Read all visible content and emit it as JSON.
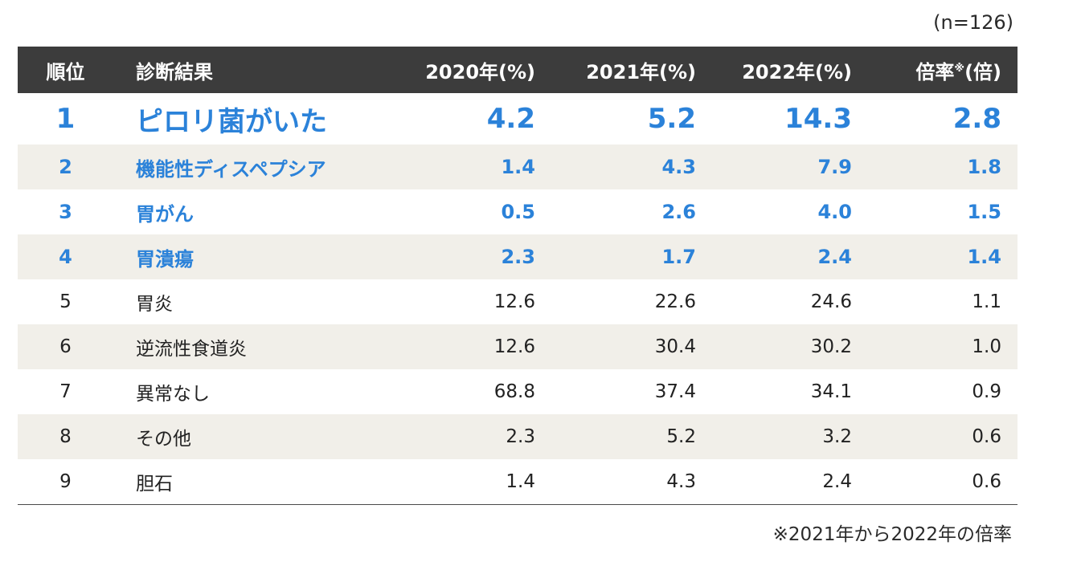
{
  "sample_size": "(n=126)",
  "header": {
    "rank": "順位",
    "diagnosis": "診断結果",
    "y2020": "2020年(%)",
    "y2021": "2021年(%)",
    "y2022": "2022年(%)",
    "ratio": "倍率",
    "ratio_mark": "※",
    "ratio_unit": "(倍)"
  },
  "rows": [
    {
      "rank": "1",
      "name": "ピロリ菌がいた",
      "y2020": "4.2",
      "y2021": "5.2",
      "y2022": "14.3",
      "ratio": "2.8"
    },
    {
      "rank": "2",
      "name": "機能性ディスペプシア",
      "y2020": "1.4",
      "y2021": "4.3",
      "y2022": "7.9",
      "ratio": "1.8"
    },
    {
      "rank": "3",
      "name": "胃がん",
      "y2020": "0.5",
      "y2021": "2.6",
      "y2022": "4.0",
      "ratio": "1.5"
    },
    {
      "rank": "4",
      "name": "胃潰瘍",
      "y2020": "2.3",
      "y2021": "1.7",
      "y2022": "2.4",
      "ratio": "1.4"
    },
    {
      "rank": "5",
      "name": "胃炎",
      "y2020": "12.6",
      "y2021": "22.6",
      "y2022": "24.6",
      "ratio": "1.1"
    },
    {
      "rank": "6",
      "name": "逆流性食道炎",
      "y2020": "12.6",
      "y2021": "30.4",
      "y2022": "30.2",
      "ratio": "1.0"
    },
    {
      "rank": "7",
      "name": "異常なし",
      "y2020": "68.8",
      "y2021": "37.4",
      "y2022": "34.1",
      "ratio": "0.9"
    },
    {
      "rank": "8",
      "name": "その他",
      "y2020": "2.3",
      "y2021": "5.2",
      "y2022": "3.2",
      "ratio": "0.6"
    },
    {
      "rank": "9",
      "name": "胆石",
      "y2020": "1.4",
      "y2021": "4.3",
      "y2022": "2.4",
      "ratio": "0.6"
    }
  ],
  "footnote": "※2021年から2022年の倍率",
  "colors": {
    "highlight": "#2b82d9",
    "header_bg": "#3c3c3c",
    "alt_row_bg": "#f1efe9"
  }
}
